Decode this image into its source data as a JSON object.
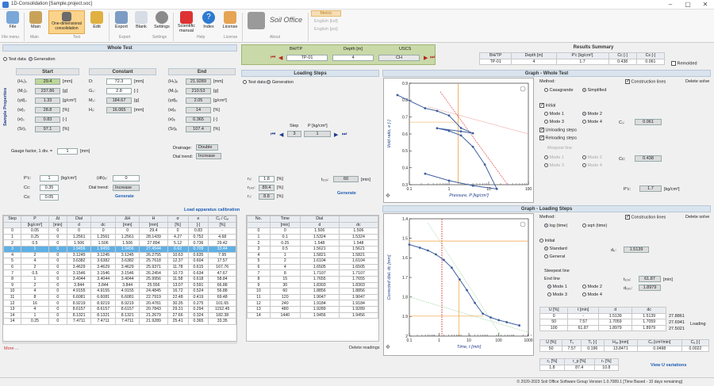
{
  "window": {
    "title": "1D-Consolidation [Sample.project.soc]"
  },
  "ribbon": {
    "buttons": [
      {
        "name": "file",
        "label": "File"
      },
      {
        "name": "main",
        "label": "Main"
      },
      {
        "name": "test",
        "label": "One-dimensional consolidation"
      },
      {
        "name": "edit",
        "label": "Edit"
      },
      {
        "name": "export",
        "label": "Export"
      },
      {
        "name": "blank",
        "label": "Blank"
      },
      {
        "name": "settings",
        "label": "Settings"
      },
      {
        "name": "manual",
        "label": "Scientific manual"
      },
      {
        "name": "index",
        "label": "Index"
      },
      {
        "name": "license",
        "label": "License"
      }
    ],
    "groups": [
      "File menu",
      "Main",
      "Test",
      "Export",
      "Settings",
      "Help",
      "License",
      "About"
    ],
    "units": {
      "metric": "Metric",
      "eng1": "English [ksf]",
      "eng2": "English [psi]"
    },
    "logo": "Soil Office"
  },
  "whole_test": {
    "title": "Whole Test",
    "mode": {
      "test_data": "Test data",
      "generation": "Generation"
    },
    "side": "Sample Properties",
    "start_title": "Start",
    "constant_title": "Constant",
    "end_title": "End",
    "start": [
      {
        "sym": "(H₀)ₛ",
        "val": "29.4",
        "unit": "[mm]"
      },
      {
        "sym": "(M₀)ₛ",
        "val": "237.86",
        "unit": "[g]"
      },
      {
        "sym": "(γd)ₛ",
        "val": "1.33",
        "unit": "[g/cm³]"
      },
      {
        "sym": "(w)ₛ",
        "val": "28.8",
        "unit": "[%]"
      },
      {
        "sym": "(e)ₛ",
        "val": "0.83",
        "unit": "[-]"
      },
      {
        "sym": "(Sr)ₛ",
        "val": "97.1",
        "unit": "[%]"
      }
    ],
    "constant": [
      {
        "sym": "D:",
        "val": "72.3",
        "unit": "[mm]"
      },
      {
        "sym": "Gₛ:",
        "val": "2.8",
        "unit": "[-]"
      },
      {
        "sym": "Mₛ:",
        "val": "184.67",
        "unit": "[g]"
      },
      {
        "sym": "Hₛ:",
        "val": "16.065",
        "unit": "[mm]"
      }
    ],
    "end": [
      {
        "sym": "(H₀)ₑ",
        "val": "21.9289",
        "unit": "[mm]"
      },
      {
        "sym": "(M₀)ₑ",
        "val": "210.53",
        "unit": "[g]"
      },
      {
        "sym": "(γd)ₑ",
        "val": "2.05",
        "unit": "[g/cm³]"
      },
      {
        "sym": "(w)ₑ",
        "val": "14",
        "unit": "[%]"
      },
      {
        "sym": "(e)ₑ",
        "val": "0.365",
        "unit": "[-]"
      },
      {
        "sym": "(Sr)ₑ",
        "val": "107.4",
        "unit": "[%]"
      }
    ],
    "gauge_label": "Gauge factor, 1 div. =",
    "gauge_val": "1",
    "gauge_unit": "[mm]",
    "drainage_label": "Drainage:",
    "drainage_val": "Double",
    "dial_trend_label": "Dial trend:",
    "dial_trend_val": "Increase",
    "gen": {
      "p0_label": "P'c:",
      "p0": "1",
      "p0_unit": "[kg/cm²]",
      "cc_label": "Cc:",
      "cc": "0.35",
      "cs_label": "Cs:",
      "cs": "0.05",
      "dh_label": "(dh)₀:",
      "dh": "0",
      "dial_label": "Dial trend:",
      "dial": "Increase",
      "generate": "Generate"
    },
    "load_calib": "Load apparatus calibration"
  },
  "top_sel": {
    "bh_label": "BH/TP",
    "bh": "TP-01",
    "depth_label": "Depth [m]",
    "depth": "4",
    "uscs_label": "USCS",
    "uscs": "CH"
  },
  "results": {
    "title": "Results Summary",
    "headers": [
      "BH/TP",
      "Depth [m]",
      "P'c [kg/cm²]",
      "Cc [-]",
      "Cs [-]"
    ],
    "row": [
      "TP-01",
      "4",
      "1.7",
      "0.438",
      "0.061"
    ],
    "remolded": "Remolded"
  },
  "loading": {
    "title": "Loading Steps",
    "mode": {
      "test_data": "Test data",
      "generation": "Generation"
    },
    "step_label": "Step",
    "p_label": "P [kg/cm²]",
    "step": "3",
    "p": "1",
    "gen": [
      {
        "sym": "r₀:",
        "val": "1.8",
        "unit": "[%]"
      },
      {
        "sym": "r₁₀₀:",
        "val": "89.4",
        "unit": "[%]"
      },
      {
        "sym": "rₛ:",
        "val": "8.8",
        "unit": "[%]"
      }
    ],
    "t100_label": "t₁₀₀:",
    "t100": "60",
    "t100_unit": "[min]",
    "generate": "Generate",
    "delete": "Delete readings"
  },
  "step_table": {
    "headers1": [
      "Step",
      "P",
      "Δt",
      "Dial",
      "",
      "ΔH",
      "H",
      "σ",
      "e",
      "Cᵥ / Cᵥᵢ"
    ],
    "headers2": [
      "",
      "[kg/cm²]",
      "[min]",
      "d",
      "dc",
      "[mm]",
      "[mm]",
      "[%]",
      "[-]",
      "[%]"
    ],
    "rows": [
      [
        "0",
        "0.05",
        "0",
        "0",
        "0",
        "0",
        "29.4",
        "0",
        "0.83",
        "-"
      ],
      [
        "1",
        "0.25",
        "0",
        "1.2561",
        "1.2561",
        "1.2561",
        "28.1439",
        "4.27",
        "0.752",
        "4.68"
      ],
      [
        "2",
        "0.5",
        "0",
        "1.506",
        "1.506",
        "1.506",
        "27.894",
        "5.12",
        "0.736",
        "29.42"
      ],
      [
        "3",
        "1",
        "0",
        "1.9456",
        "1.9456",
        "1.9456",
        "27.4544",
        "6.62",
        "0.709",
        "33.44"
      ],
      [
        "4",
        "2",
        "0",
        "3.1245",
        "3.1245",
        "3.1245",
        "26.2755",
        "10.63",
        "0.635",
        "7.95"
      ],
      [
        "5",
        "4",
        "0",
        "3.6382",
        "3.6382",
        "3.6382",
        "25.7618",
        "12.37",
        "0.604",
        "17.57"
      ],
      [
        "6",
        "2",
        "0",
        "3.4629",
        "3.4629",
        "3.4629",
        "25.9371",
        "11.78",
        "0.615",
        "167.76"
      ],
      [
        "7",
        "0.5",
        "0",
        "3.1546",
        "3.1546",
        "3.1546",
        "26.2454",
        "10.73",
        "0.634",
        "47.67"
      ],
      [
        "8",
        "1",
        "0",
        "3.4044",
        "3.4044",
        "3.4044",
        "25.9956",
        "11.58",
        "0.618",
        "58.84"
      ],
      [
        "9",
        "2",
        "0",
        "3.844",
        "3.844",
        "3.844",
        "25.556",
        "13.07",
        "0.591",
        "66.88"
      ],
      [
        "10",
        "4",
        "0",
        "4.9155",
        "4.9155",
        "4.9155",
        "24.4845",
        "16.72",
        "0.524",
        "56.88"
      ],
      [
        "11",
        "8",
        "0",
        "6.6081",
        "6.6081",
        "6.6081",
        "22.7919",
        "22.48",
        "0.419",
        "69.48"
      ],
      [
        "12",
        "16",
        "0",
        "8.9219",
        "8.9219",
        "8.9219",
        "20.4781",
        "30.35",
        "0.275",
        "101.65"
      ],
      [
        "13",
        "4",
        "0",
        "8.6157",
        "8.6157",
        "8.6157",
        "20.7843",
        "29.31",
        "0.294",
        "1152.45"
      ],
      [
        "14",
        "1",
        "0",
        "8.1321",
        "8.1321",
        "8.1321",
        "21.2679",
        "27.66",
        "0.324",
        "182.38"
      ],
      [
        "14",
        "0.25",
        "0",
        "7.4711",
        "7.4711",
        "7.4711",
        "21.9289",
        "25.41",
        "0.365",
        "33.35"
      ]
    ],
    "more": "More ..."
  },
  "time_table": {
    "headers1": [
      "No.",
      "Time",
      "Dial",
      ""
    ],
    "headers2": [
      "",
      "[min]",
      "d",
      "dc"
    ],
    "rows": [
      [
        "0",
        "0",
        "1.506",
        "1.506"
      ],
      [
        "1",
        "0.1",
        "1.5324",
        "1.5324"
      ],
      [
        "2",
        "0.25",
        "1.548",
        "1.548"
      ],
      [
        "3",
        "0.5",
        "1.5621",
        "1.5621"
      ],
      [
        "4",
        "1",
        "1.5821",
        "1.5821"
      ],
      [
        "5",
        "2",
        "1.6104",
        "1.6104"
      ],
      [
        "6",
        "4",
        "1.6505",
        "1.6505"
      ],
      [
        "7",
        "8",
        "1.7107",
        "1.7107"
      ],
      [
        "8",
        "15",
        "1.7655",
        "1.7655"
      ],
      [
        "9",
        "30",
        "1.8303",
        "1.8303"
      ],
      [
        "10",
        "60",
        "1.8856",
        "1.8856"
      ],
      [
        "11",
        "120",
        "1.9047",
        "1.9047"
      ],
      [
        "12",
        "240",
        "1.9184",
        "1.9184"
      ],
      [
        "13",
        "480",
        "1.9289",
        "1.9289"
      ],
      [
        "14",
        "1440",
        "1.9456",
        "1.9456"
      ]
    ]
  },
  "graph1": {
    "title": "Graph - Whole Test",
    "ylabel": "Void ratio, e [-]",
    "xlabel": "Pressure, P [kg/cm²]",
    "xticks": [
      "0.1",
      "1",
      "10",
      "100"
    ],
    "yticks": [
      "0.3",
      "0.4",
      "0.5",
      "0.6",
      "0.7",
      "0.8",
      "0.9"
    ],
    "method_label": "Method:",
    "casagrande": "Casagrande",
    "simplified": "Simplified",
    "construction": "Construction lines",
    "delete": "Delete solve",
    "initial": "Initial",
    "modes": [
      "Mode 1",
      "Mode 2",
      "Mode 3",
      "Mode 4"
    ],
    "cs_label": "Cₛ:",
    "cs": "0.061",
    "unloading": "Unloading steps",
    "reloading": "Reloading steps",
    "mospost": "Mospost line",
    "cc_label": "Cc:",
    "cc": "0.438",
    "pc_label": "P'c:",
    "pc": "1.7",
    "pc_unit": "[kg/cm²]",
    "chart_data": {
      "type": "line",
      "x": [
        0.05,
        0.25,
        0.5,
        1,
        2,
        4,
        2,
        0.5,
        1,
        2,
        4,
        8,
        16,
        4,
        1,
        0.25
      ],
      "y": [
        0.83,
        0.752,
        0.736,
        0.709,
        0.635,
        0.604,
        0.615,
        0.634,
        0.618,
        0.591,
        0.524,
        0.419,
        0.275,
        0.294,
        0.324,
        0.365
      ]
    }
  },
  "graph2": {
    "title": "Graph - Loading Steps",
    "ylabel": "Corrected dial, dc [mm]",
    "xlabel": "Time, t [min]",
    "xticks": [
      "0.1",
      "1",
      "10",
      "100",
      "1000"
    ],
    "yticks": [
      "1.4",
      "1.5",
      "1.6",
      "1.7",
      "1.8",
      "1.9",
      "2"
    ],
    "method_label": "Method:",
    "log": "log (time)",
    "sqrt": "sqrt (time)",
    "construction": "Construction lines",
    "delete": "Delete solve",
    "initial": "Initial",
    "standard": "Standard",
    "general": "General",
    "dini_label": "d₀:",
    "dini": "1.5139",
    "steepest": "Steepest line",
    "endline": "End line",
    "modes": [
      "Mode 1",
      "Mode 2",
      "Mode 3",
      "Mode 4"
    ],
    "t100_label": "t₁₀₀:",
    "t100": "61.87",
    "t100_unit": "[min]",
    "d100_label": "d₁₀₀:",
    "d100": "1.8979",
    "tbl1": {
      "headers": [
        "U [%]",
        "t [min]",
        "d",
        "dc"
      ],
      "rows": [
        [
          "0",
          "-",
          "1.5139",
          "1.5139"
        ],
        [
          "50",
          "7.57",
          "1.7059",
          "1.7059"
        ],
        [
          "100",
          "61.87",
          "1.8979",
          "1.8979"
        ]
      ],
      "extra": [
        "27.8861",
        "27.6941",
        "27.5021"
      ]
    },
    "loading_label": "Loading",
    "tbl2": {
      "headers": [
        "U [%]",
        "Tᵥ",
        "Tᵥ [-]",
        "Hₐᵥ [mm]",
        "Cᵥ [cm²/min]",
        "Cₐ [-]"
      ],
      "row": [
        "50",
        "7.57",
        "0.196",
        "13.8471",
        "0.0498",
        "0.0022"
      ]
    },
    "tbl3": {
      "headers": [
        "r₀ [%]",
        "r_p [%]",
        "rₛ [%]"
      ],
      "row": [
        "1.8",
        "87.4",
        "10.8"
      ]
    },
    "variations": "View U variations",
    "chart_data": {
      "type": "line",
      "x": [
        0.1,
        0.25,
        0.5,
        1,
        2,
        4,
        8,
        15,
        30,
        60,
        120,
        240,
        480,
        1440
      ],
      "y": [
        1.5324,
        1.548,
        1.5621,
        1.5821,
        1.6104,
        1.6505,
        1.7107,
        1.7655,
        1.8303,
        1.8856,
        1.9047,
        1.9184,
        1.9289,
        1.9456
      ]
    }
  },
  "status": "© 2020-2023  Soil Office Software Group  Version 1.0.7089.1 [Time Based - 10 days remaining]"
}
